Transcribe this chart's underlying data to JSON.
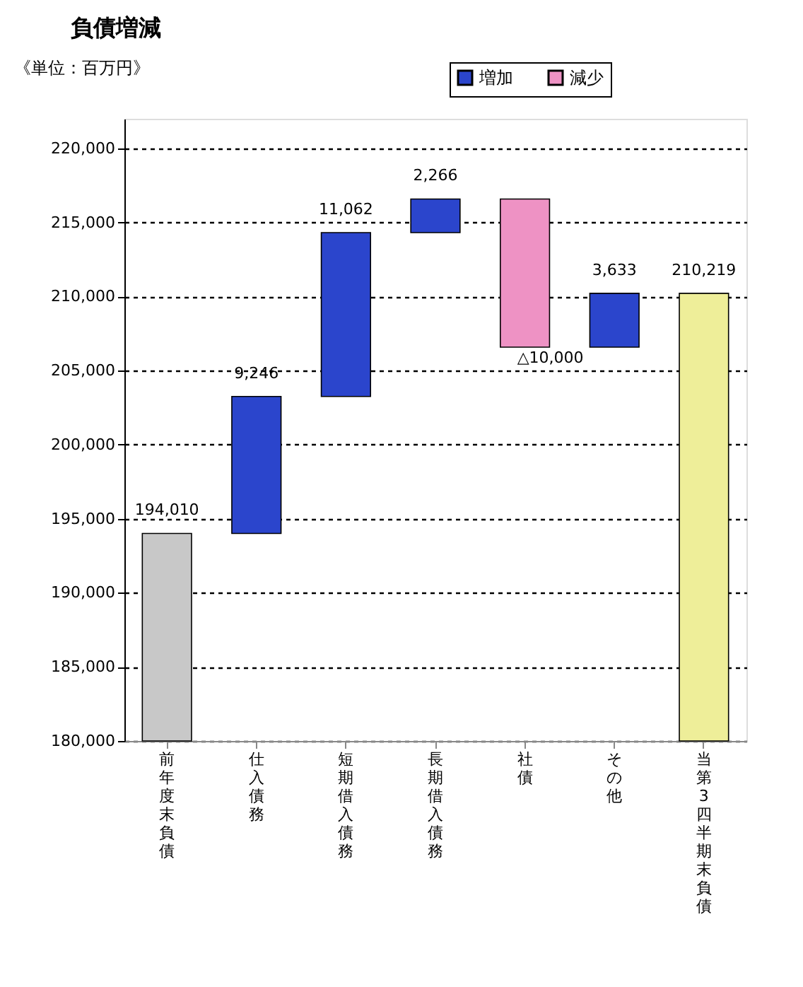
{
  "chart_data": {
    "type": "bar",
    "title": "負債増減",
    "annotations": [
      "《単位：百万円》"
    ],
    "categories": [
      "前年度末負債",
      "仕入債務",
      "短期借入債務",
      "長期借入債務",
      "社債",
      "その他",
      "当第3四半期末負債"
    ],
    "series": [
      {
        "colors": [
          "#c8c8c8",
          null,
          null,
          null,
          null,
          null,
          "#eeee99"
        ],
        "base": [
          180000,
          null,
          null,
          null,
          null,
          null,
          180000
        ],
        "values": [
          14010,
          null,
          null,
          null,
          null,
          null,
          30219
        ]
      },
      {
        "name": "増加",
        "color": "#2b45cc",
        "base": [
          null,
          194010,
          203256,
          214318,
          null,
          206584,
          null
        ],
        "values": [
          null,
          9246,
          11062,
          2266,
          null,
          3633,
          null
        ]
      },
      {
        "name": "減少",
        "color": "#ee92c4",
        "base": [
          null,
          null,
          null,
          null,
          216584,
          null,
          null
        ],
        "values": [
          null,
          null,
          null,
          null,
          -10000,
          null,
          null
        ]
      }
    ],
    "value_labels": [
      "194,010",
      "9,246",
      "11,062",
      "2,266",
      "△10,000",
      "3,633",
      "210,219"
    ],
    "ylim": [
      180000,
      222000
    ],
    "yticks": [
      {
        "value": 180000,
        "label": "180,000"
      },
      {
        "value": 185000,
        "label": "185,000"
      },
      {
        "value": 190000,
        "label": "190,000"
      },
      {
        "value": 195000,
        "label": "195,000"
      },
      {
        "value": 200000,
        "label": "200,000"
      },
      {
        "value": 205000,
        "label": "205,000"
      },
      {
        "value": 210000,
        "label": "210,000"
      },
      {
        "value": 215000,
        "label": "215,000"
      },
      {
        "value": 220000,
        "label": "220,000"
      }
    ],
    "grid": "y",
    "legend": "top"
  }
}
